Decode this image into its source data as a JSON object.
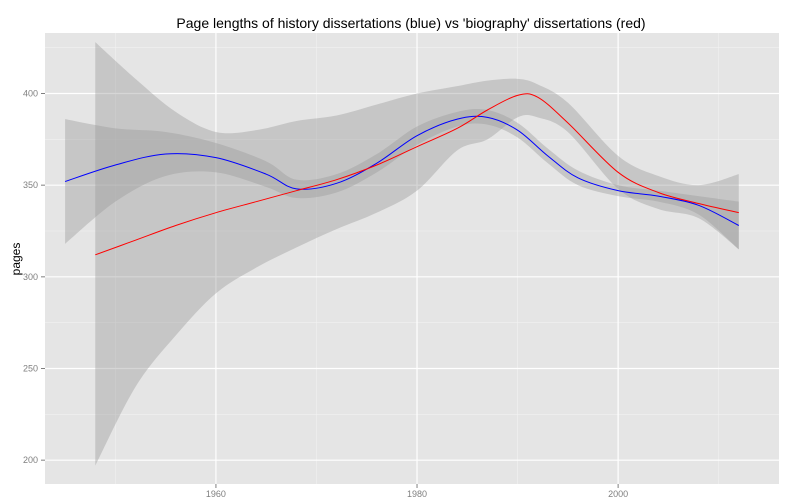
{
  "chart_data": {
    "type": "line",
    "title": "Page lengths of history dissertations (blue) vs 'biography' dissertations (red)",
    "xlabel": "",
    "ylabel": "pages",
    "xlim": [
      1943,
      2016
    ],
    "ylim": [
      187,
      433
    ],
    "x_ticks": [
      "1960",
      "1980",
      "2000"
    ],
    "x_tick_values": [
      1960,
      1980,
      2000
    ],
    "y_ticks": [
      "200",
      "250",
      "300",
      "350",
      "400"
    ],
    "y_tick_values": [
      200,
      250,
      300,
      350,
      400
    ],
    "grid": true,
    "legend": "none",
    "colors": {
      "background": "#e5e5e5",
      "grid": "#ffffff",
      "band": "#999999",
      "history": "#0000ff",
      "biography": "#ff0000"
    },
    "series": [
      {
        "name": "history",
        "color": "#0000ff",
        "x": [
          1945,
          1950,
          1955,
          1960,
          1965,
          1968,
          1972,
          1976,
          1980,
          1984,
          1987,
          1990,
          1993,
          1996,
          2000,
          2004,
          2008,
          2012
        ],
        "y": [
          352,
          361,
          367,
          365,
          356,
          348,
          351,
          362,
          377,
          386,
          387,
          380,
          366,
          354,
          347,
          344,
          339,
          328
        ],
        "lower": [
          318,
          341,
          355,
          357,
          349,
          343,
          346,
          357,
          372,
          382,
          383,
          376,
          362,
          350,
          344,
          341,
          334,
          315
        ],
        "upper": [
          386,
          381,
          379,
          373,
          363,
          353,
          356,
          367,
          382,
          390,
          391,
          384,
          370,
          358,
          350,
          347,
          344,
          341
        ]
      },
      {
        "name": "biography",
        "color": "#ff0000",
        "x": [
          1948,
          1952,
          1956,
          1960,
          1964,
          1968,
          1972,
          1976,
          1980,
          1984,
          1987,
          1990,
          1992,
          1995,
          2000,
          2004,
          2008,
          2012
        ],
        "y": [
          312,
          320,
          328,
          335,
          341,
          347,
          353,
          361,
          371,
          381,
          391,
          399,
          398,
          384,
          357,
          346,
          340,
          335
        ],
        "lower": [
          197,
          240,
          268,
          291,
          305,
          316,
          326,
          335,
          347,
          369,
          375,
          387,
          387,
          379,
          348,
          337,
          332,
          315
        ],
        "upper": [
          428,
          408,
          390,
          379,
          380,
          385,
          388,
          394,
          400,
          404,
          407,
          408,
          405,
          395,
          366,
          355,
          350,
          356
        ]
      }
    ]
  }
}
